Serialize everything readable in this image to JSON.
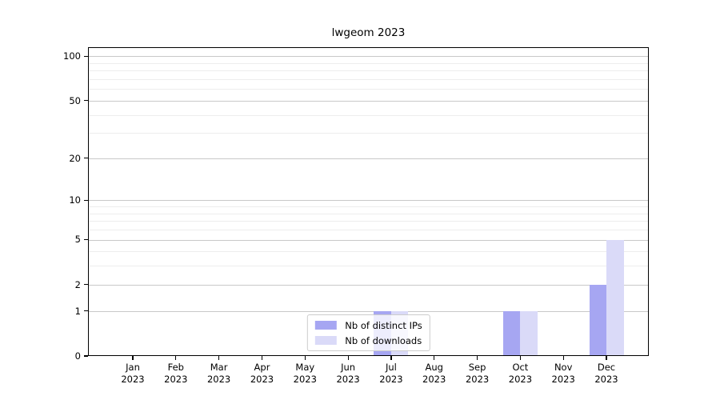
{
  "chart_data": {
    "type": "bar",
    "title": "lwgeom 2023",
    "categories": [
      "Jan",
      "Feb",
      "Mar",
      "Apr",
      "May",
      "Jun",
      "Jul",
      "Aug",
      "Sep",
      "Oct",
      "Nov",
      "Dec"
    ],
    "year": "2023",
    "series": [
      {
        "name": "Nb of distinct IPs",
        "color": "#a6a6f2",
        "values": [
          0,
          0,
          0,
          0,
          0,
          0,
          1,
          0,
          0,
          1,
          0,
          2
        ]
      },
      {
        "name": "Nb of downloads",
        "color": "#dadaf8",
        "values": [
          0,
          0,
          0,
          0,
          0,
          0,
          1,
          0,
          0,
          1,
          0,
          5
        ]
      }
    ],
    "xlabel": "",
    "ylabel": "",
    "yscale": "log1p",
    "ylim": [
      0,
      115
    ],
    "yticks": [
      0,
      1,
      2,
      5,
      10,
      20,
      50,
      100
    ],
    "yticks_minor": [
      3,
      4,
      6,
      7,
      8,
      9,
      30,
      40,
      60,
      70,
      80,
      90
    ],
    "grid": "horizontal major + minor",
    "legend_position": "lower center"
  },
  "colors": {
    "grid_major": "#c9c9c9",
    "grid_minor": "#ededed",
    "spine": "#000000",
    "text": "#000000",
    "legend_border": "#cccccc",
    "legend_bg": "rgba(255,255,255,0.8)"
  }
}
